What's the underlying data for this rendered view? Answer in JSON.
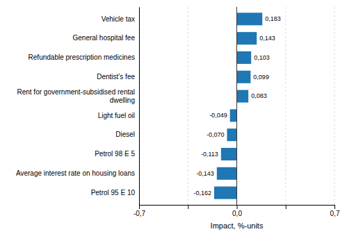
{
  "chart_data": {
    "type": "bar",
    "orientation": "horizontal",
    "categories": [
      "Petrol 95 E 10",
      "Average interest rate on housing loans",
      "Petrol 98 E 5",
      "Diesel",
      "Light fuel oil",
      "Rent for government-subsidised rental\ndwelling",
      "Dentist’s fee",
      "Refundable prescription medicines",
      "General hospital fee",
      "Vehicle tax"
    ],
    "values": [
      -0.162,
      -0.143,
      -0.113,
      -0.07,
      -0.049,
      0.083,
      0.099,
      0.103,
      0.143,
      0.183
    ],
    "value_labels": [
      "-0,162",
      "-0,143",
      "-0,113",
      "-0,070",
      "-0,049",
      "0,083",
      "0,099",
      "0,103",
      "0,143",
      "0,183"
    ],
    "data_labels": true,
    "color": "#1f77b4",
    "xlabel": "Impact, %-units",
    "xlim": [
      -0.7,
      0.7
    ],
    "xticks": [
      {
        "value": -0.7,
        "label": "-0,7"
      },
      {
        "value": -0.35,
        "label": ""
      },
      {
        "value": 0.0,
        "label": "0,0"
      },
      {
        "value": 0.35,
        "label": ""
      },
      {
        "value": 0.7,
        "label": "0,7"
      }
    ],
    "grid": true
  }
}
